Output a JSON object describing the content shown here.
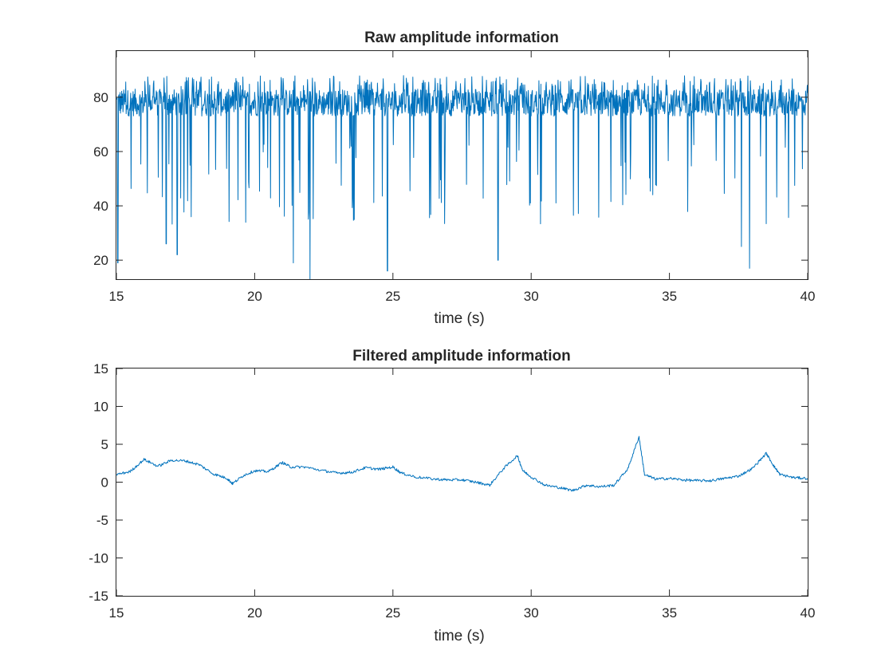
{
  "chart_data": [
    {
      "type": "line",
      "title": "Raw amplitude information",
      "xlabel": "time (s)",
      "ylabel": "",
      "xlim": [
        15,
        40
      ],
      "ylim": [
        13,
        97
      ],
      "x_ticks": [
        "15",
        "20",
        "25",
        "30",
        "35",
        "40"
      ],
      "y_ticks": [
        "20",
        "40",
        "60",
        "80"
      ],
      "grid": false,
      "series": [
        {
          "name": "raw amplitude",
          "color": "#0072BD",
          "description_stats": {
            "baseline": 78,
            "typical_high": 88,
            "max": 97,
            "min": 13
          },
          "notable_dips": [
            {
              "t": 15.05,
              "v": 19
            },
            {
              "t": 16.8,
              "v": 26
            },
            {
              "t": 17.2,
              "v": 22
            },
            {
              "t": 21.4,
              "v": 19
            },
            {
              "t": 22.0,
              "v": 13
            },
            {
              "t": 24.8,
              "v": 16
            },
            {
              "t": 28.8,
              "v": 20
            },
            {
              "t": 37.6,
              "v": 25
            },
            {
              "t": 37.9,
              "v": 17
            }
          ]
        }
      ]
    },
    {
      "type": "line",
      "title": "Filtered amplitude information",
      "xlabel": "time (s)",
      "ylabel": "",
      "xlim": [
        15,
        40
      ],
      "ylim": [
        -15,
        15
      ],
      "x_ticks": [
        "15",
        "20",
        "25",
        "30",
        "35",
        "40"
      ],
      "y_ticks": [
        "-15",
        "-10",
        "-5",
        "0",
        "5",
        "10",
        "15"
      ],
      "grid": false,
      "series": [
        {
          "name": "filtered amplitude",
          "color": "#0072BD",
          "x": [
            15,
            15.5,
            16,
            16.5,
            17,
            17.5,
            18,
            18.5,
            19,
            19.2,
            19.6,
            20,
            20.5,
            21,
            21.3,
            21.8,
            22.5,
            23,
            23.5,
            24,
            24.5,
            25,
            25.3,
            25.8,
            26.5,
            27,
            27.5,
            28,
            28.5,
            29,
            29.5,
            29.7,
            30,
            30.5,
            31,
            31.5,
            32,
            32.5,
            33,
            33.5,
            33.9,
            34.1,
            34.5,
            35,
            35.5,
            36,
            36.5,
            37,
            37.5,
            38,
            38.5,
            38.8,
            39,
            39.5,
            40
          ],
          "y": [
            1.0,
            1.4,
            3.0,
            2.1,
            2.9,
            2.8,
            2.3,
            1.1,
            0.5,
            -0.2,
            0.9,
            1.5,
            1.4,
            2.6,
            2.0,
            2.0,
            1.5,
            1.2,
            1.3,
            1.9,
            1.7,
            2.0,
            1.2,
            0.7,
            0.4,
            0.3,
            0.3,
            0.0,
            -0.4,
            1.8,
            3.5,
            1.5,
            0.7,
            -0.4,
            -0.7,
            -1.1,
            -0.4,
            -0.6,
            -0.4,
            1.8,
            6.0,
            1.0,
            0.4,
            0.5,
            0.3,
            0.2,
            0.2,
            0.5,
            0.8,
            1.8,
            3.8,
            2.0,
            1.0,
            0.6,
            0.5
          ]
        }
      ]
    }
  ]
}
